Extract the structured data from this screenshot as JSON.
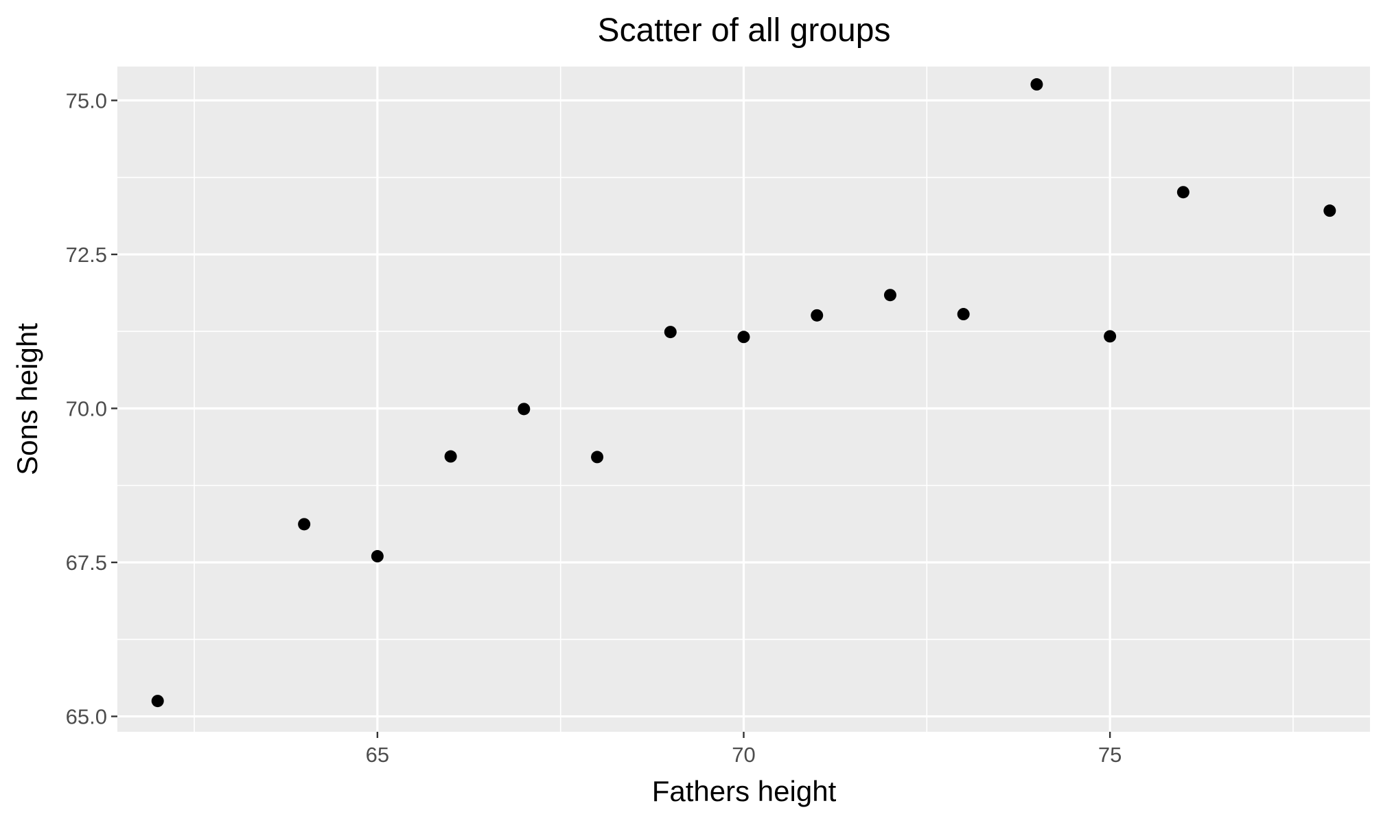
{
  "chart_data": {
    "type": "scatter",
    "title": "Scatter of all groups",
    "xlabel": "Fathers height",
    "ylabel": "Sons height",
    "xlim": [
      61.45,
      78.55
    ],
    "ylim": [
      64.75,
      75.55
    ],
    "x_ticks": [
      65,
      70,
      75
    ],
    "x_tick_labels": [
      "65",
      "70",
      "75"
    ],
    "y_ticks": [
      65.0,
      67.5,
      70.0,
      72.5,
      75.0
    ],
    "y_tick_labels": [
      "65.0",
      "67.5",
      "70.0",
      "72.5",
      "75.0"
    ],
    "grid": true,
    "legend": "none",
    "colors": {
      "panel": "#ebebeb",
      "grid": "#ffffff",
      "point": "#000000",
      "tick_label": "#4d4d4d"
    },
    "points": [
      {
        "x": 62,
        "y": 65.25
      },
      {
        "x": 64,
        "y": 68.12
      },
      {
        "x": 65,
        "y": 67.6
      },
      {
        "x": 66,
        "y": 69.22
      },
      {
        "x": 67,
        "y": 69.99
      },
      {
        "x": 68,
        "y": 69.21
      },
      {
        "x": 69,
        "y": 71.24
      },
      {
        "x": 70,
        "y": 71.16
      },
      {
        "x": 71,
        "y": 71.51
      },
      {
        "x": 72,
        "y": 71.84
      },
      {
        "x": 73,
        "y": 71.53
      },
      {
        "x": 74,
        "y": 75.26
      },
      {
        "x": 75,
        "y": 71.17
      },
      {
        "x": 76,
        "y": 73.51
      },
      {
        "x": 78,
        "y": 73.21
      }
    ]
  }
}
